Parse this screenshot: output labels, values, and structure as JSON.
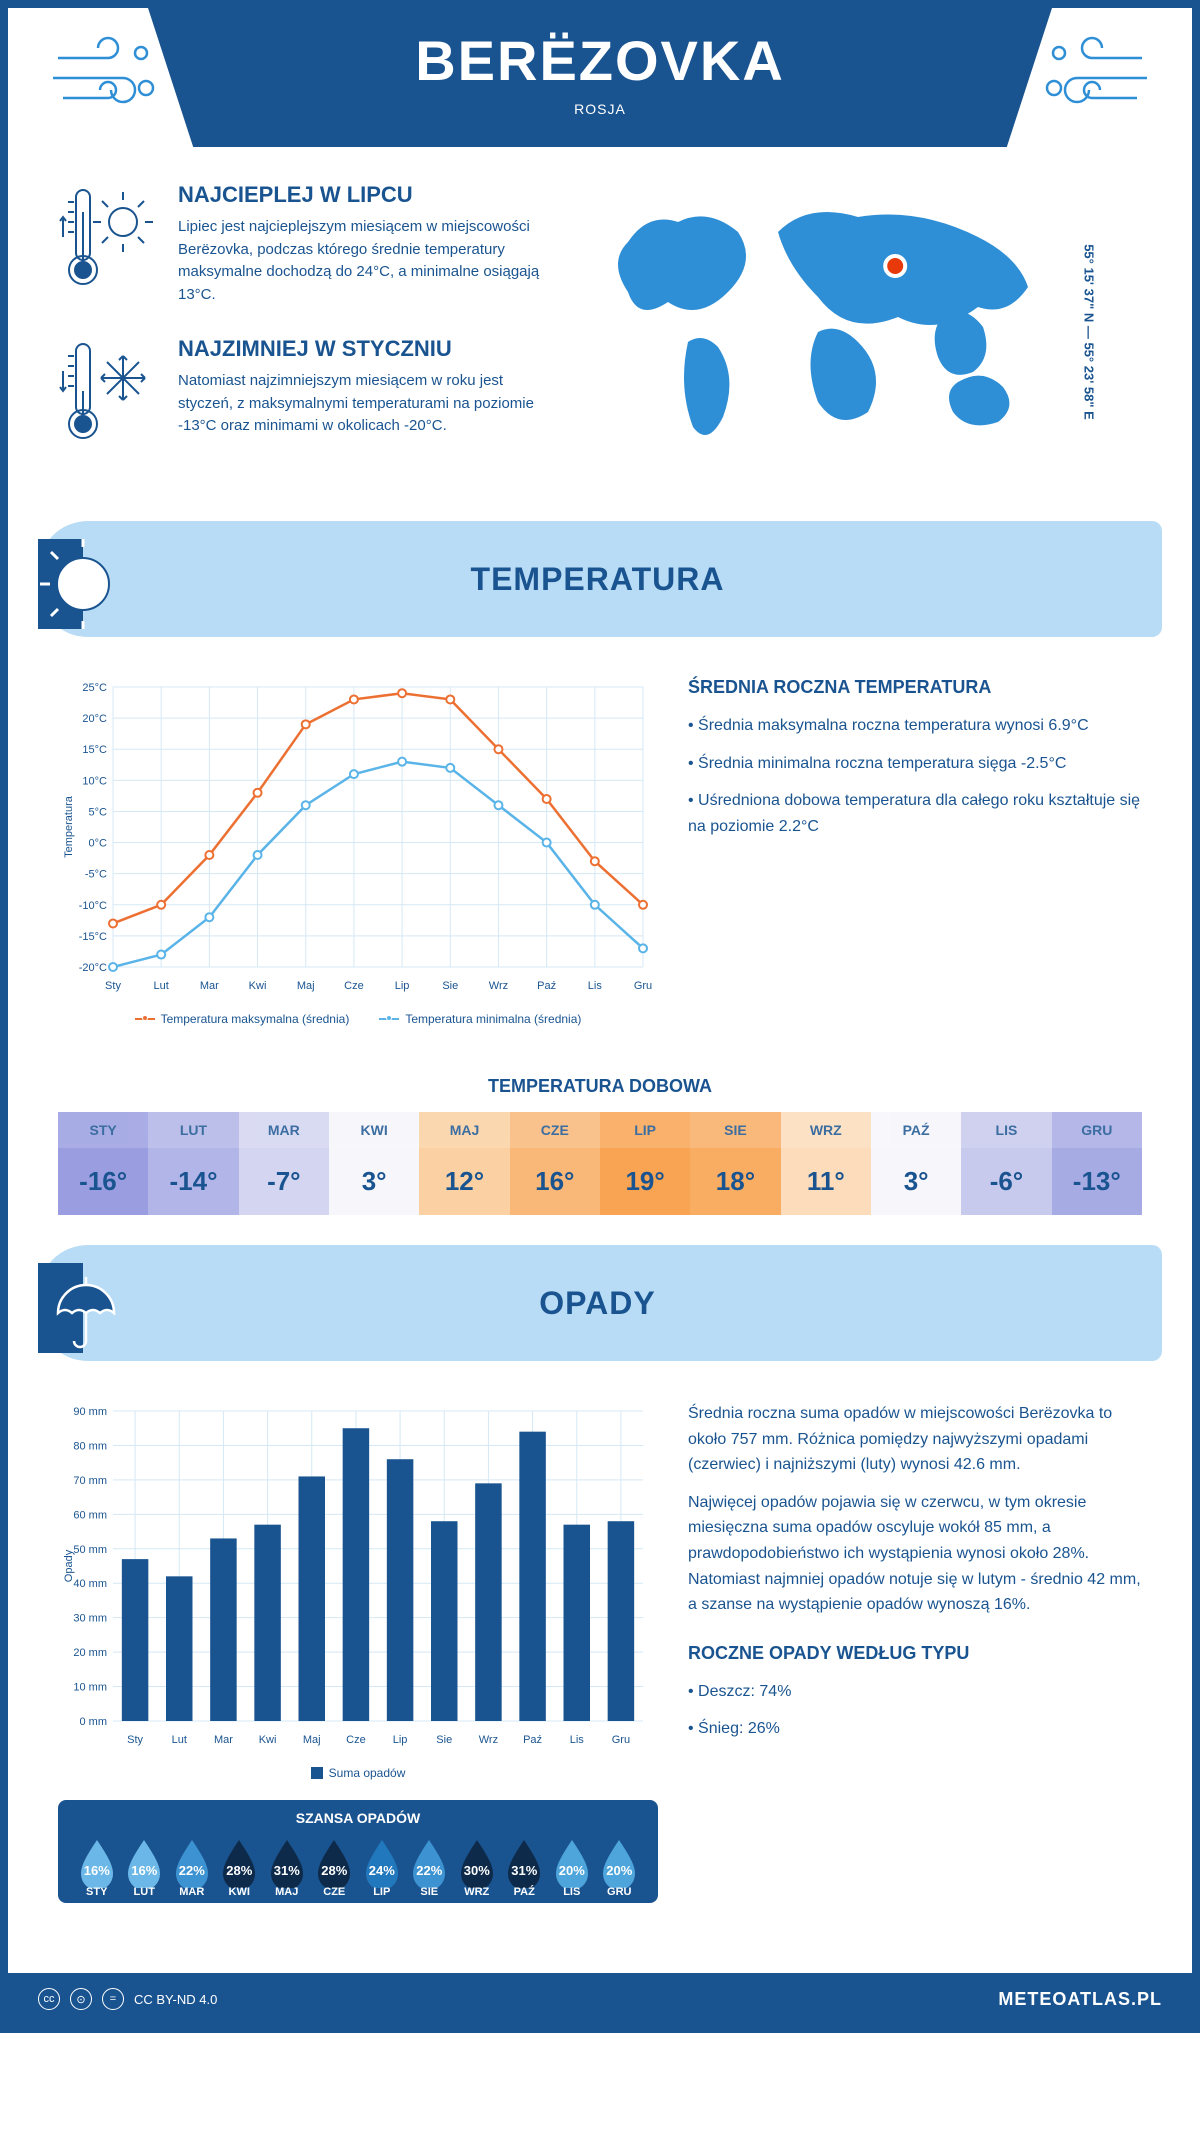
{
  "header": {
    "title": "BERËZOVKA",
    "country": "ROSJA",
    "coords": "55° 15' 37\" N — 55° 23' 58\" E"
  },
  "warmest": {
    "title": "NAJCIEPLEJ W LIPCU",
    "text": "Lipiec jest najcieplejszym miesiącem w miejscowości Berëzovka, podczas którego średnie temperatury maksymalne dochodzą do 24°C, a minimalne osiągają 13°C."
  },
  "coldest": {
    "title": "NAJZIMNIEJ W STYCZNIU",
    "text": "Natomiast najzimniejszym miesiącem w roku jest styczeń, z maksymalnymi temperaturami na poziomie -13°C oraz minimami w okolicach -20°C."
  },
  "map": {
    "marker_pct_x": 64,
    "marker_pct_y": 30,
    "marker_color": "#e8390b",
    "land_color": "#2f8fd6"
  },
  "temp_section": {
    "title": "TEMPERATURA",
    "chart": {
      "months": [
        "Sty",
        "Lut",
        "Mar",
        "Kwi",
        "Maj",
        "Cze",
        "Lip",
        "Sie",
        "Wrz",
        "Paź",
        "Lis",
        "Gru"
      ],
      "max_series": [
        -13,
        -10,
        -2,
        8,
        19,
        23,
        24,
        23,
        15,
        7,
        -3,
        -10
      ],
      "min_series": [
        -20,
        -18,
        -12,
        -2,
        6,
        11,
        13,
        12,
        6,
        0,
        -10,
        -17
      ],
      "max_color": "#ed7033",
      "min_color": "#5ab4e8",
      "grid_color": "#d5e8f5",
      "axis_color": "#1a5490",
      "y_min": -20,
      "y_max": 25,
      "y_step": 5,
      "y_label": "Temperatura",
      "legend_max": "Temperatura maksymalna (średnia)",
      "legend_min": "Temperatura minimalna (średnia)"
    },
    "stats_title": "ŚREDNIA ROCZNA TEMPERATURA",
    "stats": [
      "• Średnia maksymalna roczna temperatura wynosi 6.9°C",
      "• Średnia minimalna roczna temperatura sięga -2.5°C",
      "• Uśredniona dobowa temperatura dla całego roku kształtuje się na poziomie 2.2°C"
    ],
    "daily_title": "TEMPERATURA DOBOWA",
    "daily": {
      "months": [
        "STY",
        "LUT",
        "MAR",
        "KWI",
        "MAJ",
        "CZE",
        "LIP",
        "SIE",
        "WRZ",
        "PAŹ",
        "LIS",
        "GRU"
      ],
      "values": [
        "-16°",
        "-14°",
        "-7°",
        "3°",
        "12°",
        "16°",
        "19°",
        "18°",
        "11°",
        "3°",
        "-6°",
        "-13°"
      ],
      "colors": [
        "#9a9ee0",
        "#b1b5e7",
        "#d3d5f1",
        "#f6f6fb",
        "#fbd1a3",
        "#f9b878",
        "#f8a453",
        "#f9ad63",
        "#fcdcbb",
        "#f6f6fb",
        "#c7c9ed",
        "#a7abe4"
      ],
      "text_colors": [
        "#1a5490",
        "#1a5490",
        "#1a5490",
        "#1a5490",
        "#1a5490",
        "#1a5490",
        "#1a5490",
        "#1a5490",
        "#1a5490",
        "#1a5490",
        "#1a5490",
        "#1a5490"
      ]
    }
  },
  "precip_section": {
    "title": "OPADY",
    "chart": {
      "months": [
        "Sty",
        "Lut",
        "Mar",
        "Kwi",
        "Maj",
        "Cze",
        "Lip",
        "Sie",
        "Wrz",
        "Paź",
        "Lis",
        "Gru"
      ],
      "values": [
        47,
        42,
        53,
        57,
        71,
        85,
        76,
        58,
        69,
        84,
        57,
        58
      ],
      "bar_color": "#1a5490",
      "grid_color": "#d5e8f5",
      "y_min": 0,
      "y_max": 90,
      "y_step": 10,
      "y_label": "Opady",
      "legend": "Suma opadów"
    },
    "text": [
      "Średnia roczna suma opadów w miejscowości Berëzovka to około 757 mm. Różnica pomiędzy najwyższymi opadami (czerwiec) i najniższymi (luty) wynosi 42.6 mm.",
      "Najwięcej opadów pojawia się w czerwcu, w tym okresie miesięczna suma opadów oscyluje wokół 85 mm, a prawdopodobieństwo ich wystąpienia wynosi około 28%. Natomiast najmniej opadów notuje się w lutym - średnio 42 mm, a szanse na wystąpienie opadów wynoszą 16%."
    ],
    "chance_title": "SZANSA OPADÓW",
    "chance": {
      "months": [
        "STY",
        "LUT",
        "MAR",
        "KWI",
        "MAJ",
        "CZE",
        "LIP",
        "SIE",
        "WRZ",
        "PAŹ",
        "LIS",
        "GRU"
      ],
      "pct": [
        "16%",
        "16%",
        "22%",
        "28%",
        "31%",
        "28%",
        "24%",
        "22%",
        "30%",
        "31%",
        "20%",
        "20%"
      ],
      "drop_colors": [
        "#6bb8e8",
        "#6bb8e8",
        "#3d93d1",
        "#0d2a4a",
        "#0d2a4a",
        "#0d2a4a",
        "#2278bc",
        "#3d93d1",
        "#0d2a4a",
        "#0d2a4a",
        "#4ea5db",
        "#4ea5db"
      ]
    },
    "type_title": "ROCZNE OPADY WEDŁUG TYPU",
    "types": [
      "• Deszcz: 74%",
      "• Śnieg: 26%"
    ]
  },
  "footer": {
    "license": "CC BY-ND 4.0",
    "site": "METEOATLAS.PL"
  },
  "colors": {
    "primary": "#1a5490",
    "light_blue": "#b8dcf5"
  }
}
